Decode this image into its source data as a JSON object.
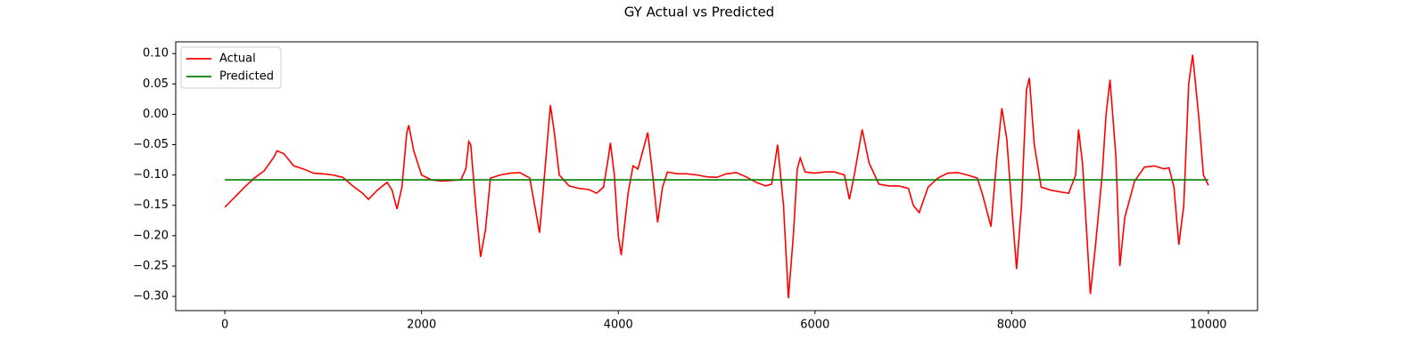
{
  "chart_data": {
    "type": "line",
    "title": "GY Actual vs Predicted",
    "xlim": [
      -500,
      10500
    ],
    "xticks": [
      0,
      2000,
      4000,
      6000,
      8000,
      10000
    ],
    "ylim": [
      -0.3234,
      0.1194
    ],
    "yticks": [
      {
        "value": 0.1,
        "label": "0.10"
      },
      {
        "value": 0.05,
        "label": "0.05"
      },
      {
        "value": 0,
        "label": "0.00"
      },
      {
        "value": -0.05,
        "label": "−0.05"
      },
      {
        "value": -0.1,
        "label": "−0.10"
      },
      {
        "value": -0.15,
        "label": "−0.15"
      },
      {
        "value": -0.2,
        "label": "−0.20"
      },
      {
        "value": -0.25,
        "label": "−0.25"
      },
      {
        "value": -0.3,
        "label": "−0.30"
      }
    ],
    "legend": "upper left",
    "series": [
      {
        "name": "Actual",
        "color": "#ff0000",
        "x": [
          0,
          200,
          300,
          400,
          500,
          530,
          600,
          700,
          800,
          900,
          1000,
          1100,
          1200,
          1300,
          1400,
          1460,
          1550,
          1650,
          1700,
          1750,
          1800,
          1850,
          1870,
          1920,
          2000,
          2100,
          2200,
          2300,
          2400,
          2450,
          2480,
          2500,
          2550,
          2600,
          2650,
          2700,
          2800,
          2900,
          3000,
          3100,
          3200,
          3250,
          3310,
          3350,
          3400,
          3500,
          3600,
          3700,
          3780,
          3850,
          3900,
          3920,
          3960,
          4000,
          4030,
          4100,
          4150,
          4200,
          4250,
          4300,
          4350,
          4400,
          4450,
          4500,
          4600,
          4700,
          4800,
          4900,
          5000,
          5100,
          5200,
          5300,
          5400,
          5500,
          5560,
          5620,
          5680,
          5730,
          5780,
          5820,
          5850,
          5900,
          6000,
          6100,
          6200,
          6300,
          6350,
          6400,
          6480,
          6550,
          6650,
          6750,
          6850,
          6950,
          7000,
          7060,
          7150,
          7250,
          7350,
          7450,
          7550,
          7650,
          7700,
          7790,
          7850,
          7900,
          7950,
          8000,
          8050,
          8100,
          8150,
          8180,
          8230,
          8300,
          8400,
          8500,
          8580,
          8650,
          8680,
          8720,
          8800,
          8850,
          8920,
          8960,
          9000,
          9060,
          9100,
          9150,
          9250,
          9350,
          9450,
          9550,
          9600,
          9650,
          9700,
          9750,
          9800,
          9840,
          9900,
          9950,
          10000
        ],
        "values": [
          -0.153,
          -0.12,
          -0.105,
          -0.093,
          -0.07,
          -0.06,
          -0.065,
          -0.085,
          -0.09,
          -0.097,
          -0.098,
          -0.1,
          -0.104,
          -0.118,
          -0.13,
          -0.14,
          -0.125,
          -0.112,
          -0.125,
          -0.156,
          -0.12,
          -0.03,
          -0.018,
          -0.06,
          -0.1,
          -0.108,
          -0.11,
          -0.109,
          -0.108,
          -0.09,
          -0.045,
          -0.05,
          -0.15,
          -0.235,
          -0.19,
          -0.105,
          -0.1,
          -0.097,
          -0.096,
          -0.105,
          -0.195,
          -0.1,
          0.015,
          -0.03,
          -0.1,
          -0.118,
          -0.122,
          -0.124,
          -0.13,
          -0.12,
          -0.07,
          -0.047,
          -0.1,
          -0.2,
          -0.232,
          -0.13,
          -0.085,
          -0.09,
          -0.06,
          -0.03,
          -0.1,
          -0.178,
          -0.12,
          -0.095,
          -0.098,
          -0.098,
          -0.1,
          -0.103,
          -0.104,
          -0.098,
          -0.096,
          -0.103,
          -0.112,
          -0.118,
          -0.115,
          -0.05,
          -0.15,
          -0.303,
          -0.2,
          -0.09,
          -0.072,
          -0.095,
          -0.097,
          -0.095,
          -0.095,
          -0.1,
          -0.14,
          -0.1,
          -0.025,
          -0.08,
          -0.115,
          -0.118,
          -0.118,
          -0.122,
          -0.15,
          -0.162,
          -0.12,
          -0.105,
          -0.097,
          -0.096,
          -0.1,
          -0.105,
          -0.13,
          -0.185,
          -0.07,
          0.01,
          -0.04,
          -0.15,
          -0.255,
          -0.15,
          0.04,
          0.06,
          -0.05,
          -0.12,
          -0.125,
          -0.128,
          -0.13,
          -0.1,
          -0.025,
          -0.08,
          -0.296,
          -0.22,
          -0.1,
          0.0,
          0.057,
          -0.07,
          -0.25,
          -0.17,
          -0.11,
          -0.087,
          -0.085,
          -0.09,
          -0.088,
          -0.12,
          -0.215,
          -0.15,
          0.05,
          0.098,
          0.0,
          -0.1,
          -0.117
        ]
      },
      {
        "name": "Predicted",
        "color": "#008000",
        "x": [
          0,
          10000
        ],
        "values": [
          -0.108,
          -0.108
        ]
      }
    ]
  }
}
